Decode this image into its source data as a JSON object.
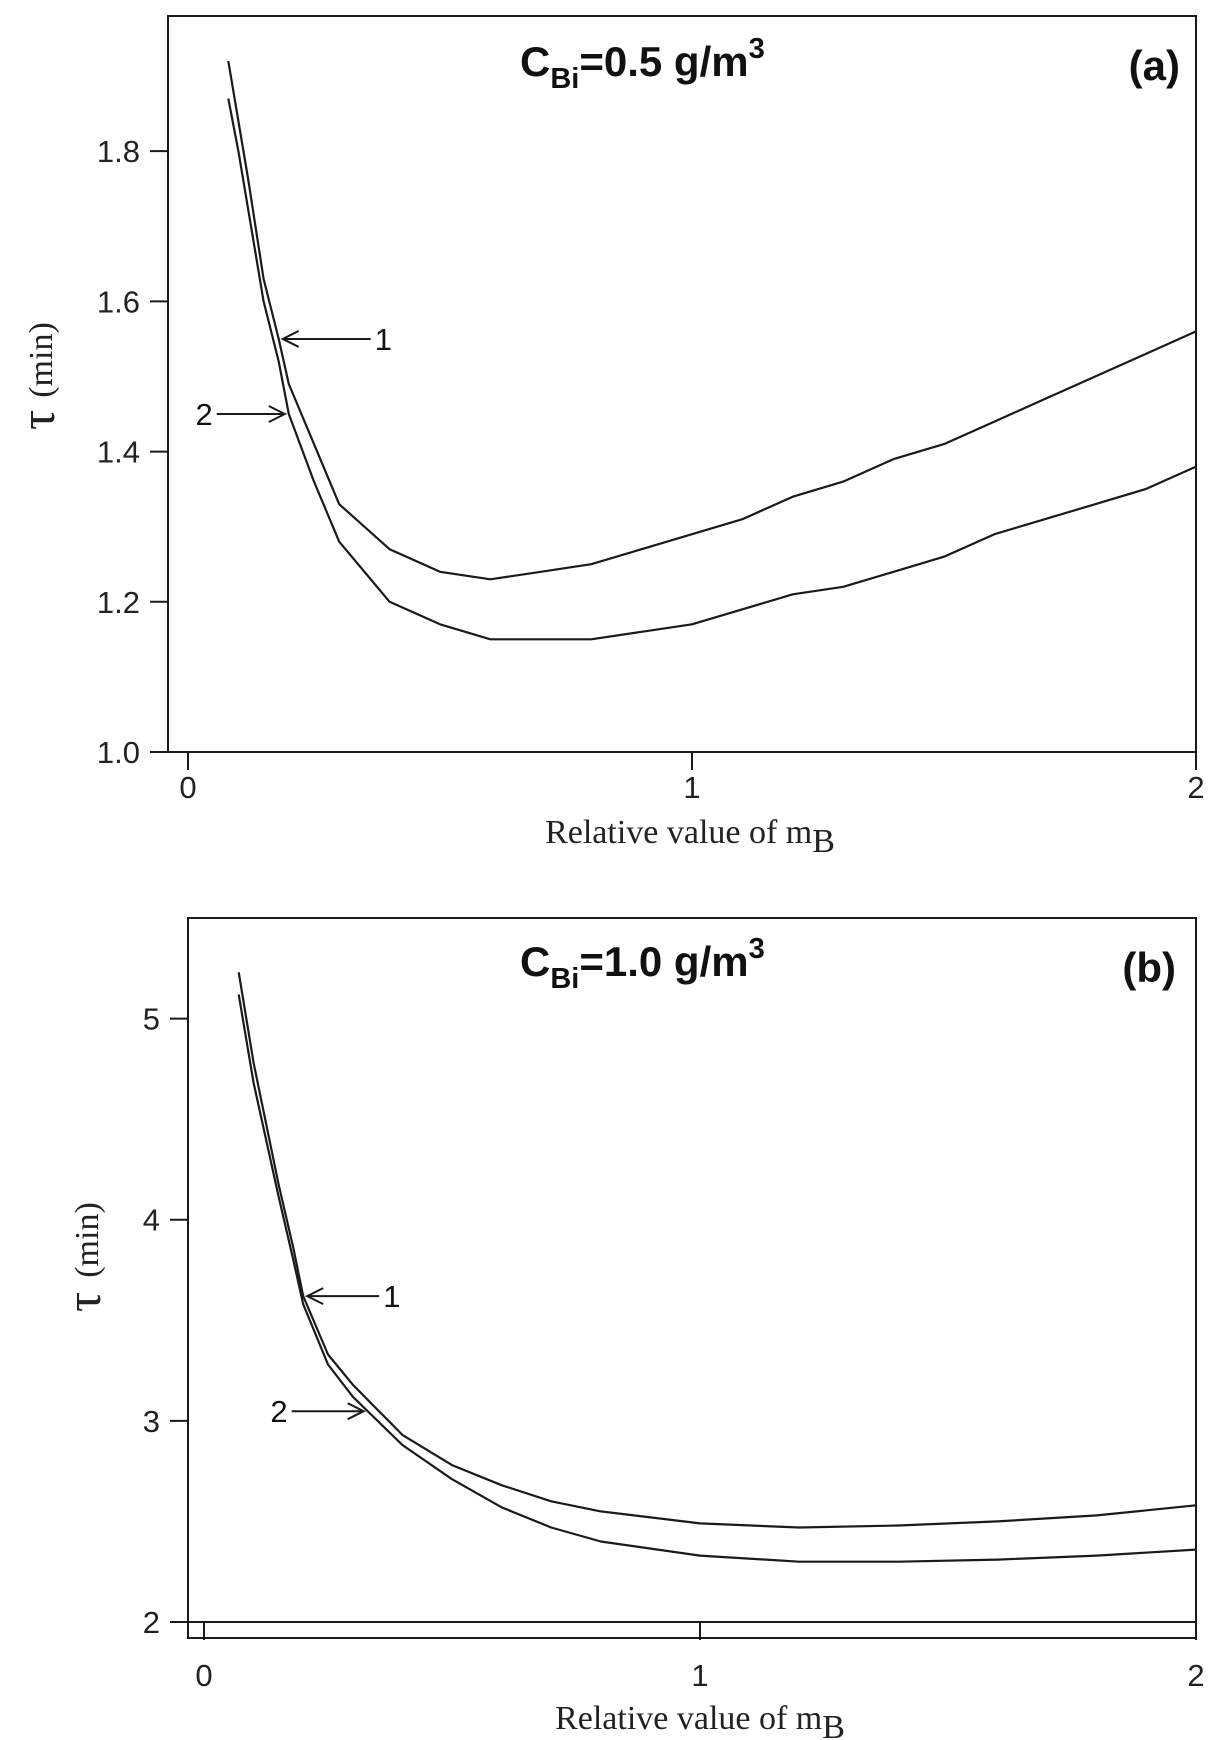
{
  "chart_data": [
    {
      "type": "line",
      "panel": "(a)",
      "title": {
        "main": "C",
        "sub": "Bi",
        "rest": "=0.5 g/m",
        "sup": "3"
      },
      "xlabel": {
        "main": "Relative value of m",
        "sub": "B"
      },
      "ylabel": {
        "symbol": "τ",
        "unit": "(min)"
      },
      "xlim": [
        0,
        2
      ],
      "ylim": [
        1.0,
        1.98
      ],
      "xticks": [
        0,
        1,
        2
      ],
      "xtick_labels": [
        "0",
        "1",
        "2"
      ],
      "yticks": [
        1.0,
        1.2,
        1.4,
        1.6,
        1.8
      ],
      "ytick_labels": [
        "1.0",
        "1.2",
        "1.4",
        "1.6",
        "1.8"
      ],
      "grid": false,
      "series": [
        {
          "name": "1",
          "x": [
            0.08,
            0.1,
            0.12,
            0.15,
            0.18,
            0.2,
            0.25,
            0.3,
            0.4,
            0.5,
            0.6,
            0.7,
            0.8,
            0.9,
            1.0,
            1.1,
            1.2,
            1.3,
            1.4,
            1.5,
            1.6,
            1.7,
            1.8,
            1.9,
            2.0
          ],
          "y": [
            1.92,
            1.84,
            1.76,
            1.63,
            1.55,
            1.49,
            1.41,
            1.33,
            1.27,
            1.24,
            1.23,
            1.24,
            1.25,
            1.27,
            1.29,
            1.31,
            1.34,
            1.36,
            1.39,
            1.41,
            1.44,
            1.47,
            1.5,
            1.53,
            1.56
          ]
        },
        {
          "name": "2",
          "x": [
            0.08,
            0.1,
            0.12,
            0.15,
            0.18,
            0.2,
            0.25,
            0.3,
            0.4,
            0.5,
            0.6,
            0.7,
            0.8,
            0.9,
            1.0,
            1.1,
            1.2,
            1.3,
            1.4,
            1.5,
            1.6,
            1.7,
            1.8,
            1.9,
            2.0
          ],
          "y": [
            1.87,
            1.8,
            1.72,
            1.6,
            1.52,
            1.45,
            1.36,
            1.28,
            1.2,
            1.17,
            1.15,
            1.15,
            1.15,
            1.16,
            1.17,
            1.19,
            1.21,
            1.22,
            1.24,
            1.26,
            1.29,
            1.31,
            1.33,
            1.35,
            1.38
          ]
        }
      ],
      "annotations": [
        {
          "text": "1",
          "series": "1",
          "at_x": 0.18
        },
        {
          "text": "2",
          "series": "2",
          "at_x": 0.2
        }
      ]
    },
    {
      "type": "line",
      "panel": "(b)",
      "title": {
        "main": "C",
        "sub": "Bi",
        "rest": "=1.0 g/m",
        "sup": "3"
      },
      "xlabel": {
        "main": "Relative value of m",
        "sub": "B"
      },
      "ylabel": {
        "symbol": "τ",
        "unit": "(min)"
      },
      "xlim": [
        0,
        2
      ],
      "ylim": [
        2,
        5.5
      ],
      "xticks": [
        0,
        1,
        2
      ],
      "xtick_labels": [
        "0",
        "1",
        "2"
      ],
      "yticks": [
        2,
        3,
        4,
        5
      ],
      "ytick_labels": [
        "2",
        "3",
        "4",
        "5"
      ],
      "grid": false,
      "series": [
        {
          "name": "1",
          "x": [
            0.07,
            0.1,
            0.15,
            0.18,
            0.2,
            0.25,
            0.3,
            0.4,
            0.5,
            0.6,
            0.7,
            0.8,
            1.0,
            1.2,
            1.4,
            1.6,
            1.8,
            2.0
          ],
          "y": [
            5.23,
            4.78,
            4.18,
            3.86,
            3.62,
            3.33,
            3.18,
            2.93,
            2.78,
            2.68,
            2.6,
            2.55,
            2.49,
            2.47,
            2.48,
            2.5,
            2.53,
            2.58
          ]
        },
        {
          "name": "2",
          "x": [
            0.07,
            0.1,
            0.15,
            0.18,
            0.2,
            0.25,
            0.3,
            0.4,
            0.5,
            0.6,
            0.7,
            0.8,
            1.0,
            1.2,
            1.4,
            1.6,
            1.8,
            2.0
          ],
          "y": [
            5.12,
            4.68,
            4.12,
            3.8,
            3.58,
            3.28,
            3.12,
            2.88,
            2.71,
            2.57,
            2.47,
            2.4,
            2.33,
            2.3,
            2.3,
            2.31,
            2.33,
            2.36
          ]
        }
      ],
      "annotations": [
        {
          "text": "1",
          "series": "1",
          "at_x": 0.2
        },
        {
          "text": "2",
          "series": "2",
          "at_x": 0.33
        }
      ]
    }
  ]
}
